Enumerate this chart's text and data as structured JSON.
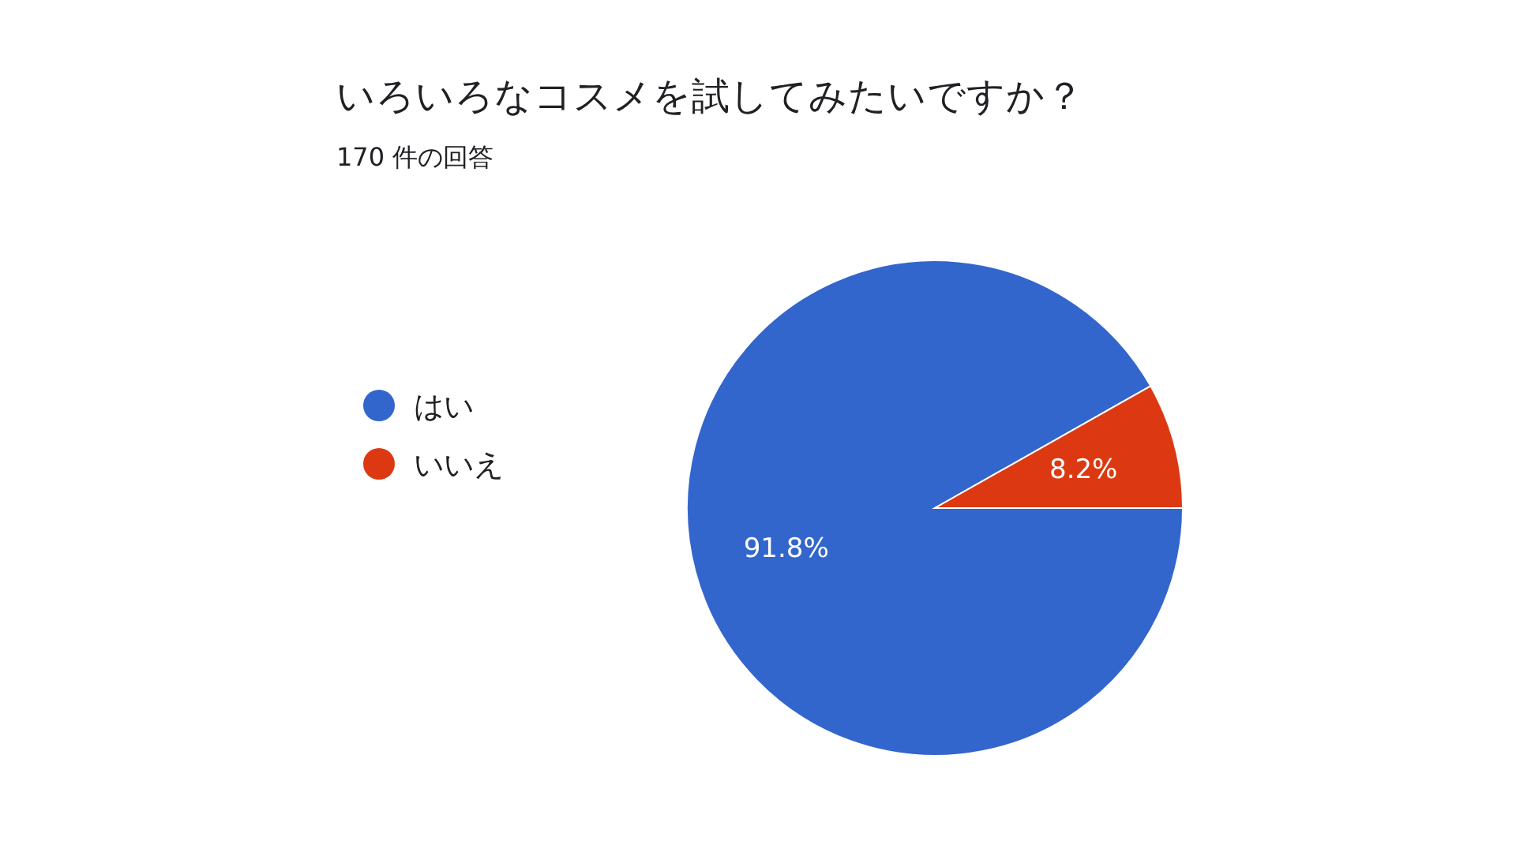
{
  "chart_data": {
    "type": "pie",
    "title": "いろいろなコスメを試してみたいですか？",
    "subtitle": "170 件の回答",
    "categories": [
      "はい",
      "いいえ"
    ],
    "values": [
      91.8,
      8.2
    ],
    "colors": [
      "#3366cc",
      "#dc3912"
    ],
    "value_labels": [
      "91.8%",
      "8.2%"
    ],
    "legend": "left"
  }
}
